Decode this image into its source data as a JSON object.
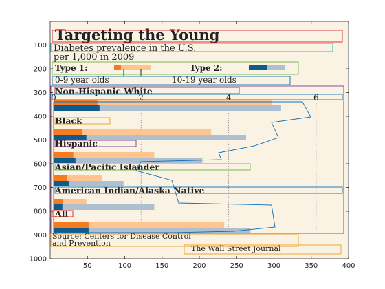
{
  "chart_data": {
    "type": "bar",
    "title": "Targeting the Young",
    "subtitle": "Diabetes prevalence in the U.S. per 1,000 in 2009",
    "subtitle_lines": [
      "Diabetes prevalence in the U.S.",
      "per 1,000 in 2009"
    ],
    "legend": {
      "type1_label": "Type 1:",
      "type2_label": "Type 2:",
      "age_0_9": "0-9 year olds",
      "age_10_19": "10-19 year olds"
    },
    "inner_axis": {
      "ticks": [
        "0",
        "2",
        "4",
        "6"
      ],
      "range": [
        0,
        6.6
      ]
    },
    "categories": [
      "Non-Hispanic White",
      "Black",
      "Hispanic",
      "Asian/Pacific Islander",
      "American Indian/Alaska Native",
      "All"
    ],
    "series": [
      {
        "name": "Type 1, 0-9 year olds",
        "values": [
          1.0,
          0.65,
          0.45,
          0.3,
          0.22,
          0.8
        ]
      },
      {
        "name": "Type 1, 10-19 year olds",
        "values": [
          5.0,
          3.6,
          2.3,
          1.1,
          0.75,
          3.9
        ]
      },
      {
        "name": "Type 2, 0-9 year olds",
        "values": [
          1.05,
          0.75,
          0.5,
          0.35,
          0.2,
          0.8
        ]
      },
      {
        "name": "Type 2, 10-19 year olds",
        "values": [
          5.2,
          4.4,
          3.4,
          1.6,
          2.3,
          4.5
        ]
      }
    ],
    "xlabel": "",
    "ylabel": "",
    "outer_x_ticks": [
      "50",
      "100",
      "150",
      "200",
      "250",
      "300",
      "350",
      "400"
    ],
    "outer_y_ticks": [
      "100",
      "200",
      "300",
      "400",
      "500",
      "600",
      "700",
      "800",
      "900",
      "1000"
    ],
    "xlim": [
      0,
      400
    ],
    "ylim": [
      0,
      1000
    ]
  },
  "source_lines": [
    "Source: Centers for Disease Control",
    "and Prevention"
  ],
  "publisher": "The Wall Street Journal",
  "colors": {
    "paper": "#faf3e4",
    "type1_young": "#f47b20",
    "type1_old": "#ffc48f",
    "type2_young": "#0f5c8c",
    "type2_old": "#aebfcf",
    "outline_red": "#d11f1f",
    "outline_cyan": "#1ab1c7",
    "outline_green": "#6cb33f",
    "outline_purple": "#7a3c8c",
    "outline_blue": "#0d6fb8",
    "outline_orange": "#f39c1f"
  }
}
